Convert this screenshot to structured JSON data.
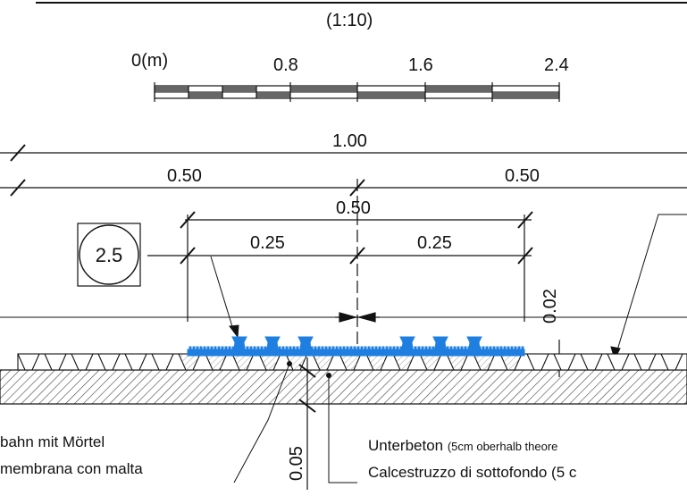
{
  "scale": {
    "ratio": "(1:10)",
    "labels": [
      "0(m)",
      "0.8",
      "1.6",
      "2.4"
    ]
  },
  "dimensions": {
    "total": "1.00",
    "half_left": "0.50",
    "half_right": "0.50",
    "span": "0.50",
    "quarter_left": "0.25",
    "quarter_right": "0.25",
    "height": "0.02",
    "depth": "0.05"
  },
  "detail_marker": "2.5",
  "notes": {
    "left_line1": "bahn mit Mörtel",
    "left_line2": "membrana con malta",
    "right_line1_main": "Unterbeton ",
    "right_line1_small": "(5cm oberhalb theore",
    "right_line2": "Calcestruzzo di sottofondo (5 c"
  },
  "colors": {
    "line": "#111111",
    "tactile": "#1f7fe0",
    "hatch": "#555555"
  }
}
